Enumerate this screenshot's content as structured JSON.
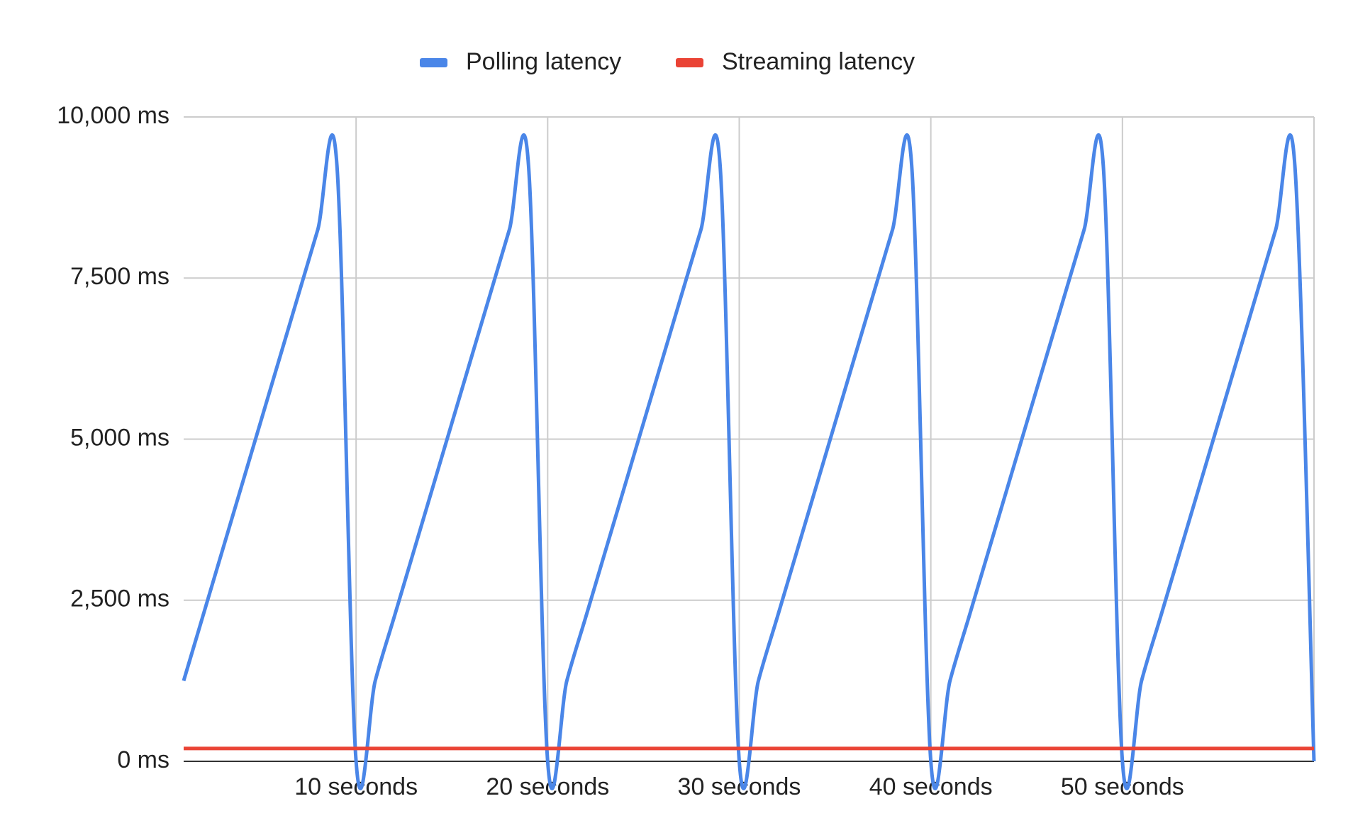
{
  "chart_data": {
    "type": "line",
    "categories": [
      null,
      null,
      null,
      null,
      null,
      null,
      null,
      null,
      null,
      "10 seconds",
      null,
      null,
      null,
      null,
      null,
      null,
      null,
      null,
      null,
      "20 seconds",
      null,
      null,
      null,
      null,
      null,
      null,
      null,
      null,
      null,
      "30 seconds",
      null,
      null,
      null,
      null,
      null,
      null,
      null,
      null,
      null,
      "40 seconds",
      null,
      null,
      null,
      null,
      null,
      null,
      null,
      null,
      null,
      "50 seconds",
      null,
      null,
      null,
      null,
      null,
      null,
      null,
      null,
      null,
      null
    ],
    "series": [
      {
        "name": "Polling latency",
        "color": "#4a86e8",
        "values": [
          1250,
          2250,
          3250,
          4250,
          5250,
          6250,
          7250,
          8250,
          9250,
          0,
          1250,
          2250,
          3250,
          4250,
          5250,
          6250,
          7250,
          8250,
          9250,
          0,
          1250,
          2250,
          3250,
          4250,
          5250,
          6250,
          7250,
          8250,
          9250,
          0,
          1250,
          2250,
          3250,
          4250,
          5250,
          6250,
          7250,
          8250,
          9250,
          0,
          1250,
          2250,
          3250,
          4250,
          5250,
          6250,
          7250,
          8250,
          9250,
          0,
          1250,
          2250,
          3250,
          4250,
          5250,
          6250,
          7250,
          8250,
          9250,
          0
        ]
      },
      {
        "name": "Streaming latency",
        "color": "#ea4335",
        "values": [
          200,
          200,
          200,
          200,
          200,
          200,
          200,
          200,
          200,
          200,
          200,
          200,
          200,
          200,
          200,
          200,
          200,
          200,
          200,
          200,
          200,
          200,
          200,
          200,
          200,
          200,
          200,
          200,
          200,
          200,
          200,
          200,
          200,
          200,
          200,
          200,
          200,
          200,
          200,
          200,
          200,
          200,
          200,
          200,
          200,
          200,
          200,
          200,
          200,
          200,
          200,
          200,
          200,
          200,
          200,
          200,
          200,
          200,
          200,
          200
        ]
      }
    ],
    "ylim": [
      0,
      10000
    ],
    "yticks": [
      {
        "value": 0,
        "label": "0 ms"
      },
      {
        "value": 2500,
        "label": "2,500 ms"
      },
      {
        "value": 5000,
        "label": "5,000 ms"
      },
      {
        "value": 7500,
        "label": "7,500 ms"
      },
      {
        "value": 10000,
        "label": "10,000 ms"
      }
    ],
    "grid": true,
    "smooth": true,
    "legend": "top"
  }
}
